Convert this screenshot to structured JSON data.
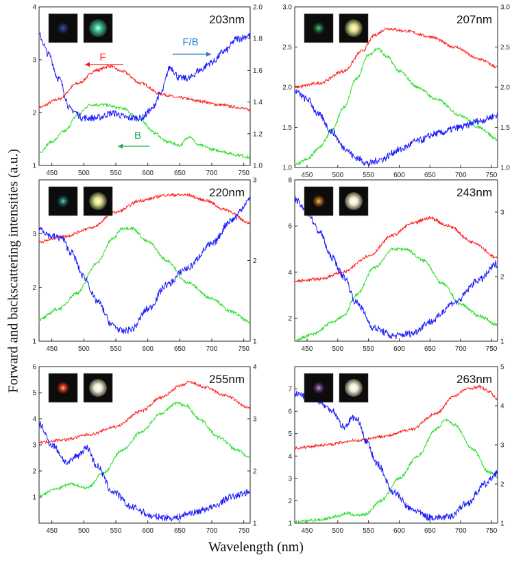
{
  "figure": {
    "ylabel": "Forward and backscattering intensities (a.u.)",
    "xlabel": "Wavelength (nm)"
  },
  "colors": {
    "F": "#ff1a1a",
    "B": "#22dd22",
    "FB": "#1a1aff",
    "arrow_blue": "#2a7bbf",
    "arrow_green": "#1aaa55"
  },
  "chart_data": [
    {
      "type": "line",
      "label": "203nm",
      "xlim": [
        430,
        760
      ],
      "x_ticks": [
        450,
        500,
        550,
        600,
        650,
        700,
        750
      ],
      "ylim_left": [
        1,
        4
      ],
      "yticks_left": [
        1,
        2,
        3,
        4
      ],
      "ylim_right": [
        1.0,
        2.0
      ],
      "yticks_right": [
        "1.0",
        "1.2",
        "1.4",
        "1.6",
        "1.8",
        "2.0"
      ],
      "annotations": [
        {
          "text": "F",
          "color": "#ff1a1a"
        },
        {
          "text": "F/B",
          "color": "#2a7bbf"
        },
        {
          "text": "B",
          "color": "#1aaa55"
        }
      ],
      "series": [
        {
          "key": "F",
          "axis": "left",
          "x": [
            430,
            460,
            490,
            520,
            540,
            560,
            590,
            620,
            650,
            680,
            710,
            740,
            760
          ],
          "y": [
            2.1,
            2.25,
            2.55,
            2.8,
            2.88,
            2.78,
            2.55,
            2.35,
            2.28,
            2.22,
            2.15,
            2.1,
            2.05
          ]
        },
        {
          "key": "B",
          "axis": "left",
          "x": [
            430,
            450,
            470,
            490,
            510,
            530,
            560,
            590,
            610,
            630,
            650,
            665,
            680,
            710,
            740,
            760
          ],
          "y": [
            1.25,
            1.45,
            1.65,
            1.95,
            2.15,
            2.15,
            2.08,
            1.85,
            1.62,
            1.45,
            1.38,
            1.55,
            1.38,
            1.28,
            1.2,
            1.15
          ]
        },
        {
          "key": "FB",
          "axis": "right",
          "x": [
            430,
            445,
            460,
            480,
            500,
            520,
            545,
            570,
            590,
            605,
            620,
            635,
            650,
            665,
            680,
            700,
            720,
            740,
            760
          ],
          "y": [
            1.82,
            1.7,
            1.55,
            1.35,
            1.3,
            1.3,
            1.33,
            1.3,
            1.3,
            1.35,
            1.45,
            1.62,
            1.55,
            1.55,
            1.6,
            1.65,
            1.72,
            1.8,
            1.82
          ]
        }
      ]
    },
    {
      "type": "line",
      "label": "207nm",
      "xlim": [
        430,
        760
      ],
      "x_ticks": [
        450,
        500,
        550,
        600,
        650,
        700,
        750
      ],
      "ylim_left": [
        1.0,
        3.0
      ],
      "yticks_left": [
        "1.0",
        "1.5",
        "2.0",
        "2.5",
        "3.0"
      ],
      "ylim_right": [
        1.0,
        3.0
      ],
      "yticks_right": [
        "1.0",
        "1.5",
        "2.0",
        "2.5",
        "3.0"
      ],
      "series": [
        {
          "key": "F",
          "axis": "left",
          "x": [
            430,
            470,
            510,
            540,
            560,
            580,
            610,
            650,
            690,
            730,
            760
          ],
          "y": [
            2.0,
            2.05,
            2.2,
            2.45,
            2.65,
            2.73,
            2.7,
            2.63,
            2.5,
            2.35,
            2.25
          ]
        },
        {
          "key": "B",
          "axis": "left",
          "x": [
            430,
            450,
            470,
            490,
            510,
            530,
            550,
            565,
            580,
            600,
            630,
            660,
            700,
            730,
            760
          ],
          "y": [
            1.03,
            1.1,
            1.25,
            1.45,
            1.75,
            2.1,
            2.4,
            2.48,
            2.38,
            2.2,
            2.0,
            1.85,
            1.65,
            1.5,
            1.35
          ]
        },
        {
          "key": "FB",
          "axis": "right",
          "x": [
            430,
            450,
            470,
            490,
            510,
            530,
            550,
            570,
            600,
            630,
            660,
            700,
            730,
            760
          ],
          "y": [
            1.95,
            1.85,
            1.65,
            1.45,
            1.25,
            1.12,
            1.05,
            1.1,
            1.22,
            1.33,
            1.42,
            1.5,
            1.58,
            1.65
          ]
        }
      ]
    },
    {
      "type": "line",
      "label": "220nm",
      "xlim": [
        430,
        760
      ],
      "x_ticks": [
        450,
        500,
        550,
        600,
        650,
        700,
        750
      ],
      "ylim_left": [
        1,
        4
      ],
      "yticks_left": [
        1,
        2,
        3
      ],
      "ylim_right": [
        1,
        3
      ],
      "yticks_right": [
        1,
        2,
        3
      ],
      "series": [
        {
          "key": "F",
          "axis": "left",
          "x": [
            430,
            470,
            510,
            550,
            590,
            630,
            660,
            690,
            720,
            760
          ],
          "y": [
            2.85,
            2.95,
            3.1,
            3.4,
            3.62,
            3.72,
            3.72,
            3.62,
            3.45,
            3.2
          ]
        },
        {
          "key": "B",
          "axis": "left",
          "x": [
            430,
            460,
            490,
            520,
            545,
            560,
            575,
            600,
            630,
            660,
            700,
            730,
            760
          ],
          "y": [
            1.4,
            1.6,
            1.9,
            2.45,
            2.9,
            3.1,
            3.1,
            2.85,
            2.5,
            2.1,
            1.8,
            1.55,
            1.35
          ]
        },
        {
          "key": "FB",
          "axis": "right",
          "x": [
            430,
            450,
            465,
            480,
            500,
            520,
            545,
            560,
            575,
            600,
            630,
            660,
            700,
            730,
            760
          ],
          "y": [
            2.4,
            2.3,
            2.28,
            2.1,
            1.8,
            1.5,
            1.2,
            1.12,
            1.15,
            1.4,
            1.7,
            1.9,
            2.2,
            2.5,
            2.75
          ]
        }
      ]
    },
    {
      "type": "line",
      "label": "243nm",
      "xlim": [
        430,
        760
      ],
      "x_ticks": [
        450,
        500,
        550,
        600,
        650,
        700,
        750
      ],
      "ylim_left": [
        1,
        8
      ],
      "yticks_left": [
        2,
        4,
        6,
        8
      ],
      "ylim_right": [
        1,
        3.5
      ],
      "yticks_right": [
        1,
        2,
        3
      ],
      "series": [
        {
          "key": "F",
          "axis": "left",
          "x": [
            430,
            470,
            510,
            550,
            590,
            620,
            650,
            680,
            720,
            760
          ],
          "y": [
            3.6,
            3.7,
            4.0,
            4.7,
            5.6,
            6.1,
            6.35,
            6.0,
            5.3,
            4.6
          ]
        },
        {
          "key": "B",
          "axis": "left",
          "x": [
            430,
            460,
            490,
            510,
            530,
            560,
            590,
            610,
            640,
            670,
            700,
            730,
            760
          ],
          "y": [
            1.05,
            1.3,
            1.8,
            2.1,
            3.0,
            4.2,
            5.0,
            5.0,
            4.5,
            3.5,
            2.6,
            2.1,
            1.7
          ]
        },
        {
          "key": "FB",
          "axis": "right",
          "x": [
            430,
            450,
            470,
            490,
            510,
            530,
            560,
            590,
            620,
            650,
            690,
            730,
            760
          ],
          "y": [
            3.2,
            3.0,
            2.7,
            2.3,
            2.0,
            1.6,
            1.2,
            1.08,
            1.12,
            1.3,
            1.6,
            1.95,
            2.2
          ]
        }
      ]
    },
    {
      "type": "line",
      "label": "255nm",
      "xlim": [
        430,
        760
      ],
      "x_ticks": [
        450,
        500,
        550,
        600,
        650,
        700,
        750
      ],
      "ylim_left": [
        0,
        6
      ],
      "yticks_left": [
        1,
        2,
        3,
        4,
        5,
        6
      ],
      "ylim_right": [
        1,
        4
      ],
      "yticks_right": [
        1,
        2,
        3,
        4
      ],
      "series": [
        {
          "key": "F",
          "axis": "left",
          "x": [
            430,
            470,
            510,
            550,
            590,
            620,
            650,
            665,
            690,
            720,
            760
          ],
          "y": [
            3.1,
            3.2,
            3.4,
            3.7,
            4.3,
            4.8,
            5.25,
            5.4,
            5.2,
            4.9,
            4.4
          ]
        },
        {
          "key": "B",
          "axis": "left",
          "x": [
            430,
            455,
            480,
            505,
            530,
            560,
            590,
            620,
            645,
            660,
            680,
            710,
            740,
            760
          ],
          "y": [
            1.05,
            1.3,
            1.5,
            1.35,
            1.9,
            2.8,
            3.5,
            4.2,
            4.6,
            4.5,
            4.0,
            3.3,
            2.8,
            2.5
          ]
        },
        {
          "key": "FB",
          "axis": "right",
          "x": [
            430,
            450,
            475,
            490,
            505,
            520,
            545,
            575,
            610,
            640,
            670,
            700,
            730,
            760
          ],
          "y": [
            2.9,
            2.5,
            2.15,
            2.3,
            2.45,
            2.1,
            1.6,
            1.3,
            1.12,
            1.1,
            1.2,
            1.3,
            1.5,
            1.6
          ]
        }
      ]
    },
    {
      "type": "line",
      "label": "263nm",
      "xlim": [
        430,
        760
      ],
      "x_ticks": [
        450,
        500,
        550,
        600,
        650,
        700,
        750
      ],
      "ylim_left": [
        1,
        8
      ],
      "yticks_left": [
        1,
        2,
        3,
        4,
        5,
        6,
        7
      ],
      "ylim_right": [
        1,
        5
      ],
      "yticks_right": [
        1,
        2,
        3,
        4,
        5
      ],
      "series": [
        {
          "key": "F",
          "axis": "left",
          "x": [
            430,
            480,
            530,
            580,
            620,
            660,
            690,
            710,
            730,
            745,
            760
          ],
          "y": [
            4.35,
            4.5,
            4.7,
            4.9,
            5.2,
            5.9,
            6.7,
            7.0,
            7.1,
            6.9,
            6.55
          ]
        },
        {
          "key": "B",
          "axis": "left",
          "x": [
            430,
            470,
            500,
            515,
            530,
            545,
            570,
            600,
            630,
            660,
            675,
            690,
            720,
            745,
            760
          ],
          "y": [
            1.05,
            1.15,
            1.3,
            1.45,
            1.35,
            1.4,
            2.0,
            3.0,
            4.0,
            5.2,
            5.6,
            5.4,
            4.3,
            3.3,
            3.1
          ]
        },
        {
          "key": "FB",
          "axis": "right",
          "x": [
            430,
            460,
            490,
            510,
            525,
            535,
            545,
            565,
            590,
            620,
            650,
            680,
            710,
            740,
            760
          ],
          "y": [
            4.3,
            4.2,
            3.9,
            3.45,
            3.7,
            3.6,
            3.1,
            2.5,
            1.8,
            1.35,
            1.15,
            1.15,
            1.5,
            2.0,
            2.3
          ]
        }
      ]
    }
  ]
}
